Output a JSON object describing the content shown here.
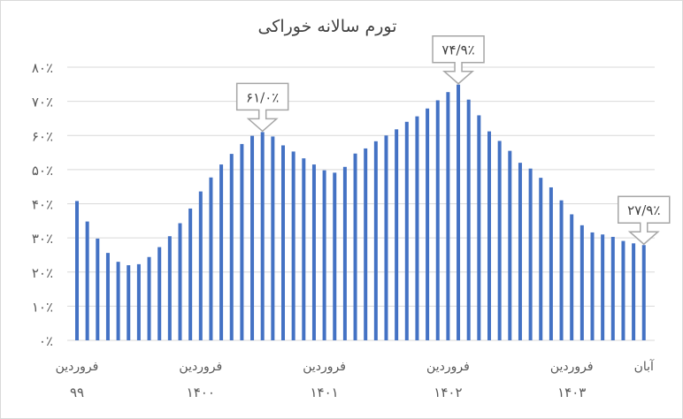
{
  "chart_data": {
    "type": "bar",
    "title": "تورم سالانه خوراکی",
    "color": "#4472c4",
    "grid_color": "#d9d9d9",
    "ylim": [
      0,
      80
    ],
    "yticks": [
      {
        "value": 0,
        "label": "۰٪"
      },
      {
        "value": 10,
        "label": "۱۰٪"
      },
      {
        "value": 20,
        "label": "۲۰٪"
      },
      {
        "value": 30,
        "label": "۳۰٪"
      },
      {
        "value": 40,
        "label": "۴۰٪"
      },
      {
        "value": 50,
        "label": "۵۰٪"
      },
      {
        "value": 60,
        "label": "۶۰٪"
      },
      {
        "value": 70,
        "label": "۷۰٪"
      },
      {
        "value": 80,
        "label": "۸۰٪"
      }
    ],
    "values": [
      40.8,
      34.8,
      29.8,
      25.6,
      23.0,
      22.0,
      22.3,
      24.4,
      27.3,
      30.5,
      34.3,
      38.6,
      43.6,
      47.7,
      51.5,
      54.6,
      57.5,
      59.9,
      61.0,
      59.7,
      57.1,
      55.3,
      53.3,
      51.5,
      49.8,
      49.1,
      50.8,
      54.7,
      56.2,
      58.3,
      60.0,
      61.8,
      64.0,
      65.6,
      67.9,
      70.3,
      72.7,
      74.9,
      70.5,
      65.9,
      61.2,
      58.4,
      55.5,
      52.0,
      50.3,
      47.6,
      44.8,
      41.0,
      36.9,
      33.7,
      31.6,
      31.0,
      30.3,
      29.1,
      28.4,
      27.9
    ],
    "xlabels": [
      {
        "index": 0,
        "line1": "فروردین",
        "line2": "۹۹"
      },
      {
        "index": 12,
        "line1": "فروردین",
        "line2": "۱۴۰۰"
      },
      {
        "index": 24,
        "line1": "فروردین",
        "line2": "۱۴۰۱"
      },
      {
        "index": 36,
        "line1": "فروردین",
        "line2": "۱۴۰۲"
      },
      {
        "index": 48,
        "line1": "فروردین",
        "line2": "۱۴۰۳"
      },
      {
        "index": 55,
        "line1": "آبان",
        "line2": ""
      }
    ],
    "callouts": [
      {
        "index": 18,
        "label": "۶۱/۰٪"
      },
      {
        "index": 37,
        "label": "۷۴/۹٪"
      },
      {
        "index": 55,
        "label": "۲۷/۹٪"
      }
    ]
  }
}
